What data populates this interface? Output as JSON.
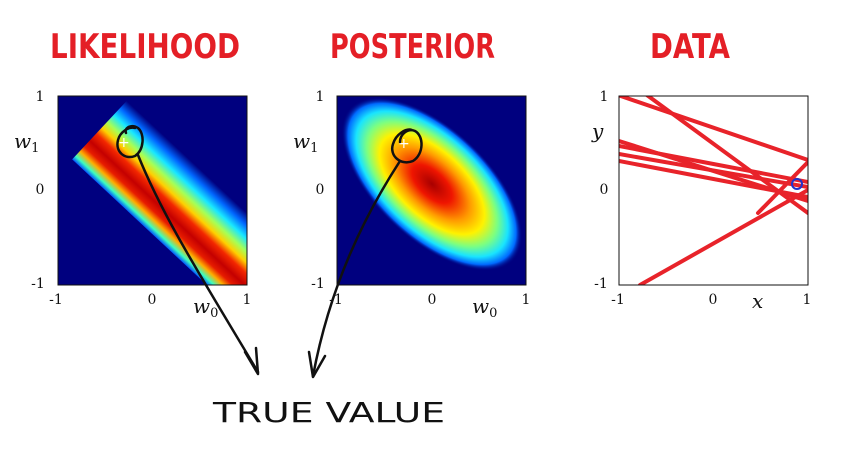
{
  "panels": [
    {
      "title": "LIKELIHOOD",
      "xlabel": "w0",
      "ylabel": "w1",
      "x_ticks": [
        "-1",
        "0",
        "1"
      ],
      "y_ticks": [
        "1",
        "0",
        "-1"
      ],
      "xlim": [
        -1,
        1
      ],
      "ylim": [
        -1,
        1
      ]
    },
    {
      "title": "POSTERIOR",
      "xlabel": "w0",
      "ylabel": "w1",
      "x_ticks": [
        "-1",
        "0",
        "1"
      ],
      "y_ticks": [
        "1",
        "0",
        "-1"
      ],
      "xlim": [
        -1,
        1
      ],
      "ylim": [
        -1,
        1
      ]
    },
    {
      "title": "DATA",
      "xlabel": "x",
      "ylabel": "y",
      "x_ticks": [
        "-1",
        "0",
        "1"
      ],
      "y_ticks": [
        "1",
        "0",
        "-1"
      ],
      "xlim": [
        -1,
        1
      ],
      "ylim": [
        -1,
        1
      ]
    }
  ],
  "annotation": "TRUE VALUE",
  "colors": {
    "title_red": "#e41f26",
    "line_red": "#e8232a",
    "ink": "#111111",
    "heat_bg": "#00007f",
    "marker_blue": "#2233cc"
  }
}
